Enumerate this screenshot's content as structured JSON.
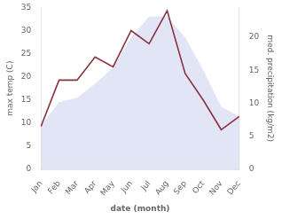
{
  "chart_data": {
    "type": "line",
    "xlabel": "date (month)",
    "ylabel": "max temp (C)",
    "y2label": "med. precipitation (kg/m2)",
    "categories": [
      "Jan",
      "Feb",
      "Mar",
      "Apr",
      "May",
      "Jun",
      "Jul",
      "Aug",
      "Sep",
      "Oct",
      "Nov",
      "Dec"
    ],
    "series": [
      {
        "type": "area",
        "color": "#c8d0ee",
        "values": [
          9.5,
          14.5,
          15.5,
          18.5,
          22.0,
          28.5,
          33.0,
          33.0,
          28.5,
          21.5,
          13.5,
          11.5
        ]
      },
      {
        "type": "line",
        "color": "#8b3040",
        "axis": "y2",
        "values": [
          6.5,
          13.5,
          13.5,
          17.0,
          15.5,
          21.0,
          19.0,
          24.0,
          14.5,
          10.5,
          6.0,
          8.0
        ]
      }
    ],
    "ylim": [
      0,
      35
    ],
    "yticks": [
      0,
      5,
      10,
      15,
      20,
      25,
      30,
      35
    ],
    "y2lim": [
      0,
      24.5
    ],
    "y2ticks": [
      0,
      5,
      10,
      15,
      20
    ],
    "grid": false
  }
}
